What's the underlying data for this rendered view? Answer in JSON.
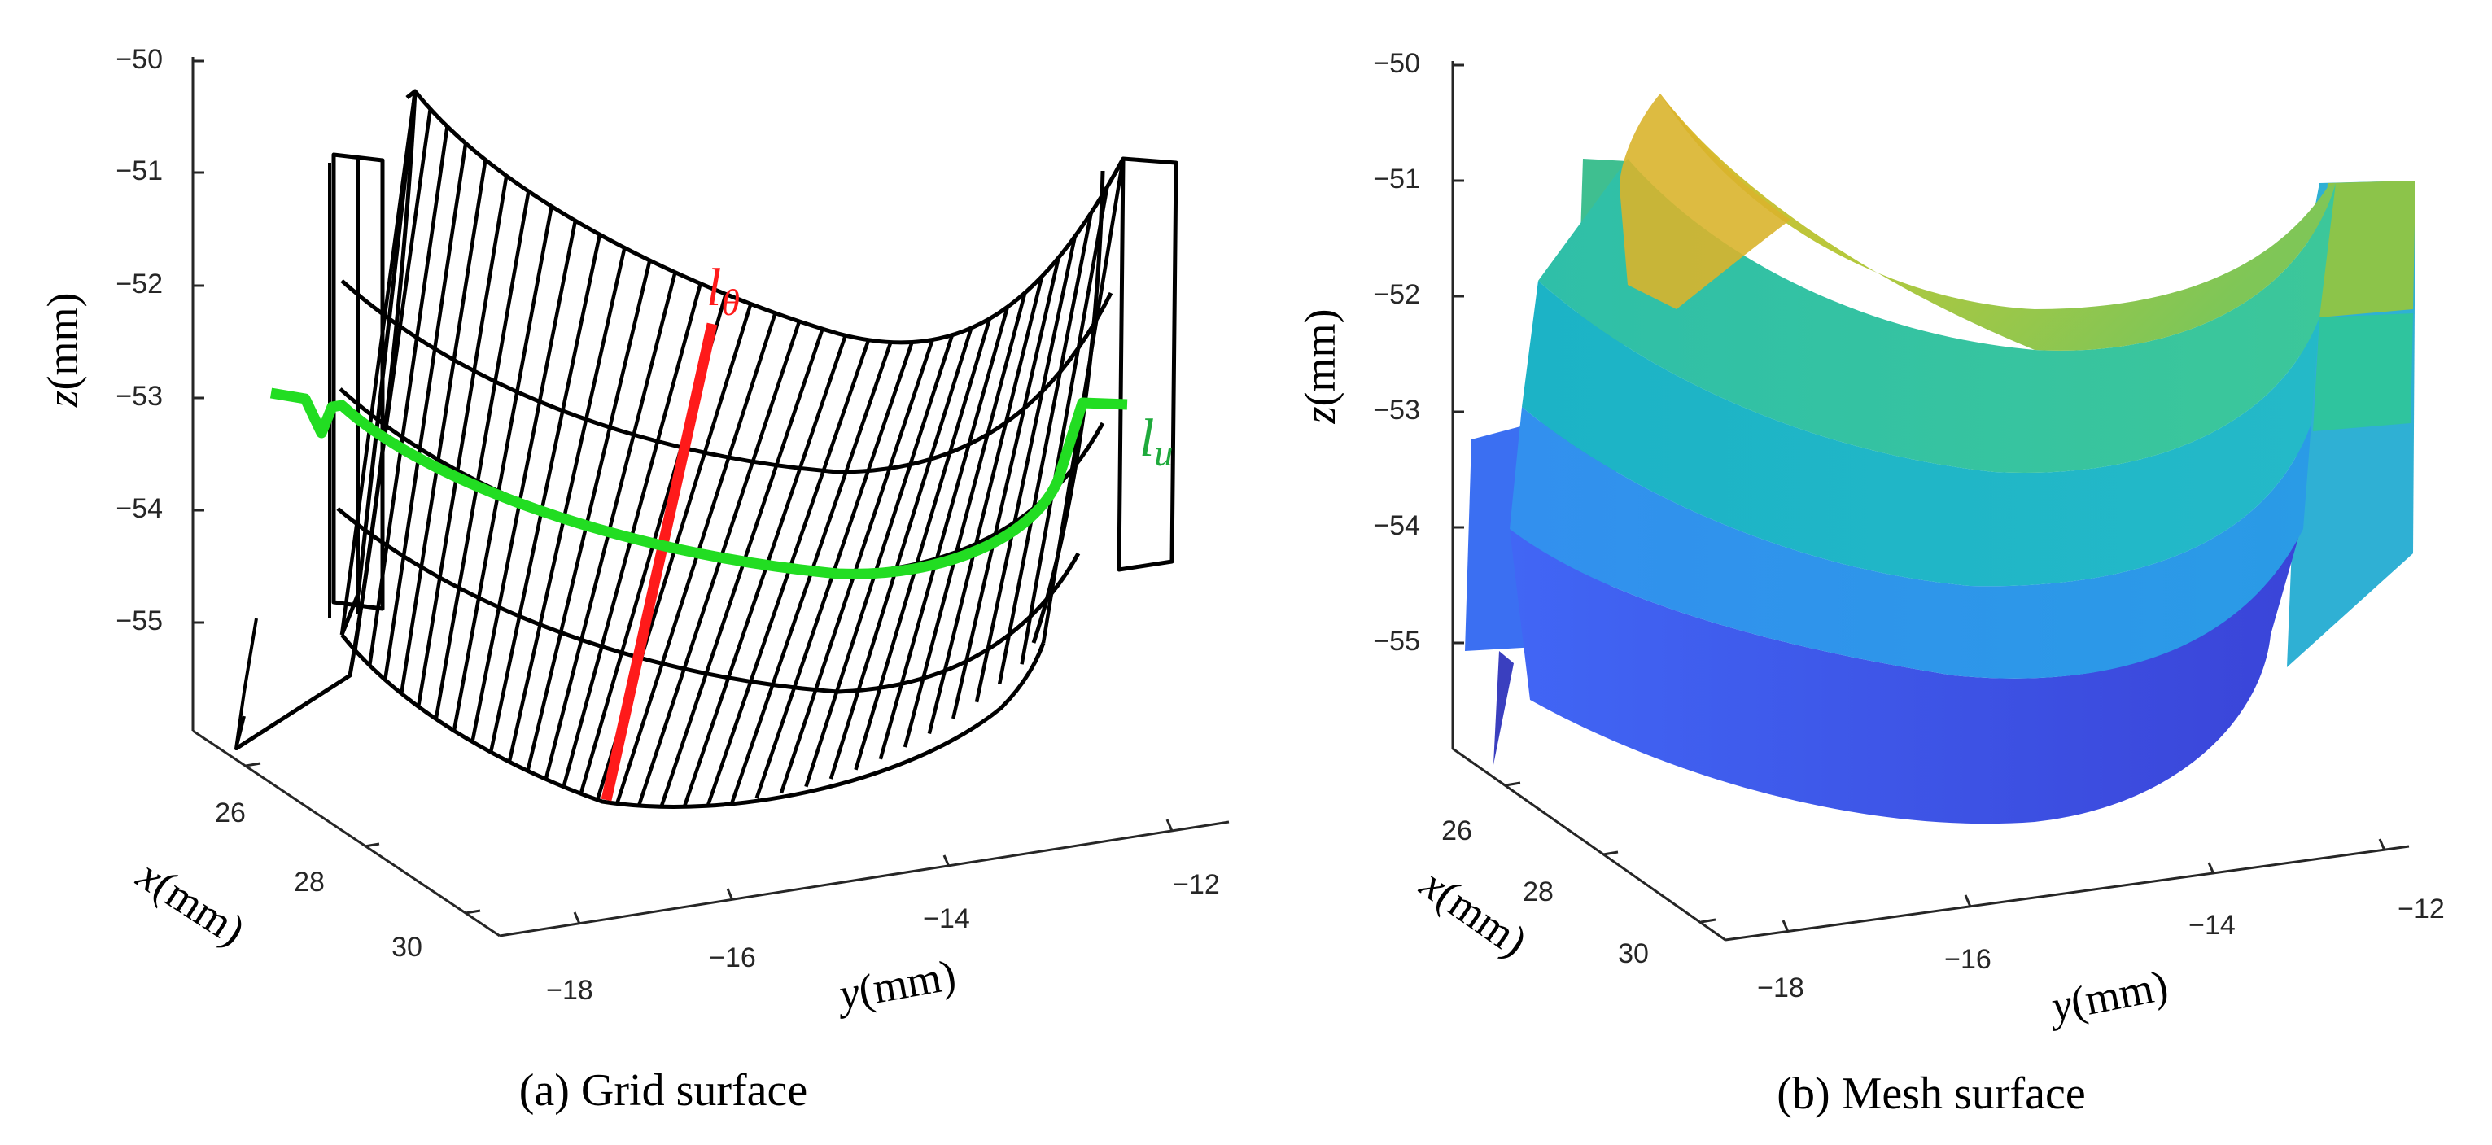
{
  "chart_data": [
    {
      "type": "surface",
      "subtype": "grid",
      "caption": "(a) Grid surface",
      "zlabel": {
        "var": "z",
        "unit": "(mm)"
      },
      "xlabel": {
        "var": "x",
        "unit": "(mm)"
      },
      "ylabel": {
        "var": "y",
        "unit": "(mm)"
      },
      "z_ticks": [
        "−50",
        "−51",
        "−52",
        "−53",
        "−54",
        "−55"
      ],
      "x_ticks": [
        "26",
        "28",
        "30"
      ],
      "y_ticks": [
        "−18",
        "−16",
        "−14",
        "−12"
      ],
      "zlim": [
        -56,
        -50
      ],
      "xlim": [
        25,
        31
      ],
      "ylim": [
        -18.5,
        -11.5
      ],
      "surface_profile": {
        "y": [
          -18,
          -17,
          -16,
          -15,
          -14,
          -13,
          -12
        ],
        "z_center_depth": [
          -51.0,
          -53.2,
          -54.3,
          -54.6,
          -54.3,
          -53.2,
          -51.0
        ]
      },
      "annotations": [
        {
          "name": "l_theta",
          "label": "l",
          "subscript": "θ",
          "color": "#ff1a1a"
        },
        {
          "name": "l_u",
          "label": "l",
          "subscript": "u",
          "color": "#1faa3c"
        }
      ],
      "grid_color": "#000000",
      "line_theta_color": "#ff1a1a",
      "line_u_color": "#22dd22"
    },
    {
      "type": "surface",
      "subtype": "mesh",
      "caption": "(b) Mesh surface",
      "zlabel": {
        "var": "z",
        "unit": "(mm)"
      },
      "xlabel": {
        "var": "x",
        "unit": "(mm)"
      },
      "ylabel": {
        "var": "y",
        "unit": "(mm)"
      },
      "z_ticks": [
        "−50",
        "−51",
        "−52",
        "−53",
        "−54",
        "−55"
      ],
      "x_ticks": [
        "26",
        "28",
        "30"
      ],
      "y_ticks": [
        "−18",
        "−16",
        "−14",
        "−12"
      ],
      "zlim": [
        -56,
        -50
      ],
      "xlim": [
        25,
        31
      ],
      "ylim": [
        -18.5,
        -11.5
      ],
      "colormap": "parula",
      "band_colors": [
        "#d7b92e",
        "#8cc44a",
        "#2ec3a6",
        "#23b4cf",
        "#2f8ff0",
        "#3d5cf2",
        "#3b3fd6"
      ]
    }
  ]
}
